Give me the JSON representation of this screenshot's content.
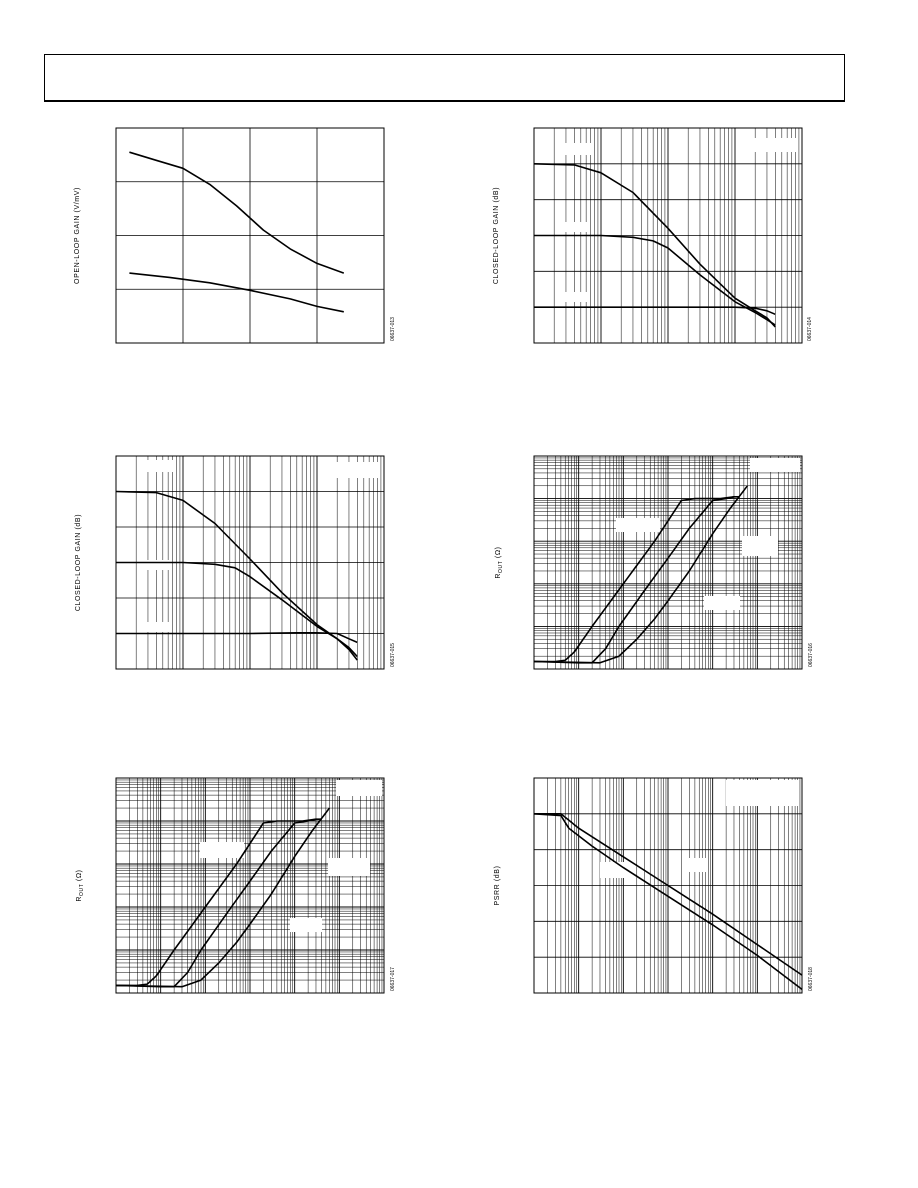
{
  "page": {
    "header": ""
  },
  "chart_data": [
    {
      "id": "ol-gain",
      "type": "line",
      "title": "",
      "xlabel": "",
      "ylabel": "OPEN-LOOP GAIN (V/mV)",
      "side_code": "06637-013",
      "x_scale": "linear",
      "y_scale": "linear",
      "xlim": [
        0,
        4
      ],
      "ylim": [
        0,
        4
      ],
      "grid": true,
      "minor_grid": false,
      "series": [
        {
          "x": [
            0.2,
            0.6,
            1.0,
            1.4,
            1.8,
            2.2,
            2.6,
            3.0,
            3.4
          ],
          "y": [
            3.55,
            3.4,
            3.25,
            2.95,
            2.55,
            2.1,
            1.75,
            1.48,
            1.3
          ]
        },
        {
          "x": [
            0.2,
            0.8,
            1.4,
            2.0,
            2.6,
            3.0,
            3.4
          ],
          "y": [
            1.3,
            1.22,
            1.12,
            0.98,
            0.82,
            0.68,
            0.58
          ]
        }
      ]
    },
    {
      "id": "cl-gain-1",
      "type": "line",
      "title": "",
      "xlabel": "",
      "ylabel": "CLOSED-LOOP GAIN (dB)",
      "side_code": "06637-014",
      "x_scale": "log",
      "y_scale": "linear",
      "xlim": [
        0.001,
        10
      ],
      "ylim": [
        0,
        6
      ],
      "grid": true,
      "minor_grid": true,
      "series": [
        {
          "x": [
            0.001,
            0.004,
            0.01,
            0.03,
            0.1,
            0.3,
            1,
            2,
            3,
            4
          ],
          "y": [
            5.0,
            4.97,
            4.75,
            4.2,
            3.2,
            2.2,
            1.25,
            0.9,
            0.7,
            0.45
          ]
        },
        {
          "x": [
            0.001,
            0.01,
            0.03,
            0.06,
            0.1,
            0.3,
            1,
            2,
            3,
            4
          ],
          "y": [
            3.0,
            3.0,
            2.95,
            2.85,
            2.65,
            1.9,
            1.15,
            0.85,
            0.65,
            0.5
          ]
        },
        {
          "x": [
            0.001,
            0.1,
            1,
            2,
            3,
            4
          ],
          "y": [
            1.0,
            1.0,
            1.0,
            0.97,
            0.9,
            0.8
          ]
        }
      ]
    },
    {
      "id": "cl-gain-2",
      "type": "line",
      "title": "",
      "xlabel": "",
      "ylabel": "CLOSED-LOOP GAIN (dB)",
      "side_code": "06637-015",
      "x_scale": "log",
      "y_scale": "linear",
      "xlim": [
        0.001,
        10
      ],
      "ylim": [
        0,
        6
      ],
      "grid": true,
      "minor_grid": true,
      "series": [
        {
          "x": [
            0.001,
            0.004,
            0.01,
            0.03,
            0.1,
            0.3,
            1,
            2,
            3,
            4
          ],
          "y": [
            5.0,
            4.97,
            4.75,
            4.1,
            3.1,
            2.15,
            1.25,
            0.85,
            0.55,
            0.25
          ]
        },
        {
          "x": [
            0.001,
            0.01,
            0.03,
            0.06,
            0.1,
            0.3,
            1,
            2,
            3,
            4
          ],
          "y": [
            3.0,
            3.0,
            2.95,
            2.85,
            2.6,
            1.95,
            1.2,
            0.85,
            0.6,
            0.35
          ]
        },
        {
          "x": [
            0.001,
            0.1,
            0.5,
            1,
            2,
            3,
            4
          ],
          "y": [
            1.0,
            1.0,
            1.02,
            1.02,
            1.0,
            0.85,
            0.75
          ]
        }
      ]
    },
    {
      "id": "rout-1",
      "type": "line",
      "title": "",
      "xlabel": "",
      "ylabel": "R",
      "ylabel_sub": "OUT",
      "ylabel_unit": " (Ω)",
      "side_code": "06637-016",
      "x_scale": "log",
      "y_scale": "log",
      "xlim": [
        0.001,
        1000
      ],
      "ylim": [
        0.01,
        1000
      ],
      "grid": true,
      "minor_grid": true,
      "series": [
        {
          "x": [
            0.001,
            0.003,
            0.005,
            0.008,
            0.02,
            0.1,
            0.5,
            1,
            2,
            4,
            8,
            15,
            30
          ],
          "y": [
            0.015,
            0.015,
            0.016,
            0.025,
            0.1,
            1,
            10,
            30,
            90,
            100,
            100,
            100,
            110
          ]
        },
        {
          "x": [
            0.001,
            0.01,
            0.02,
            0.04,
            0.08,
            0.3,
            1,
            3,
            10,
            20,
            30,
            40
          ],
          "y": [
            0.015,
            0.014,
            0.014,
            0.03,
            0.1,
            0.7,
            4,
            20,
            90,
            100,
            110,
            110
          ]
        },
        {
          "x": [
            0.001,
            0.03,
            0.08,
            0.2,
            0.5,
            1,
            3,
            10,
            25,
            60
          ],
          "y": [
            0.015,
            0.014,
            0.02,
            0.05,
            0.15,
            0.4,
            2,
            15,
            60,
            200
          ]
        }
      ]
    },
    {
      "id": "rout-2",
      "type": "line",
      "title": "",
      "xlabel": "",
      "ylabel": "R",
      "ylabel_sub": "OUT",
      "ylabel_unit": " (Ω)",
      "side_code": "06637-017",
      "x_scale": "log",
      "y_scale": "log",
      "xlim": [
        0.001,
        1000
      ],
      "ylim": [
        0.01,
        1000
      ],
      "grid": true,
      "minor_grid": true,
      "series": [
        {
          "x": [
            0.001,
            0.003,
            0.005,
            0.008,
            0.02,
            0.1,
            0.5,
            1,
            2,
            4,
            8,
            15,
            30
          ],
          "y": [
            0.015,
            0.015,
            0.016,
            0.025,
            0.1,
            1,
            10,
            30,
            90,
            100,
            100,
            100,
            110
          ]
        },
        {
          "x": [
            0.001,
            0.01,
            0.02,
            0.04,
            0.08,
            0.3,
            1,
            3,
            10,
            20,
            30,
            40
          ],
          "y": [
            0.015,
            0.014,
            0.014,
            0.03,
            0.1,
            0.7,
            4,
            20,
            90,
            100,
            110,
            110
          ]
        },
        {
          "x": [
            0.001,
            0.03,
            0.08,
            0.2,
            0.5,
            1,
            3,
            10,
            25,
            60
          ],
          "y": [
            0.015,
            0.014,
            0.02,
            0.05,
            0.15,
            0.4,
            2,
            15,
            60,
            200
          ]
        }
      ]
    },
    {
      "id": "psrr",
      "type": "line",
      "title": "",
      "xlabel": "",
      "ylabel": "PSRR (dB)",
      "side_code": "06637-018",
      "x_scale": "log",
      "y_scale": "linear",
      "xlim": [
        0.001,
        1000
      ],
      "ylim": [
        0,
        6
      ],
      "grid": true,
      "minor_grid": true,
      "series": [
        {
          "x": [
            0.001,
            0.004,
            0.006,
            0.02,
            0.1,
            1,
            10,
            100,
            1000
          ],
          "y": [
            5.0,
            4.95,
            4.6,
            4.1,
            3.5,
            2.7,
            1.9,
            1.05,
            0.1
          ]
        },
        {
          "x": [
            0.001,
            0.004,
            0.01,
            0.1,
            1,
            10,
            100,
            1000
          ],
          "y": [
            5.0,
            5.0,
            4.6,
            3.8,
            3.0,
            2.2,
            1.35,
            0.5
          ]
        }
      ]
    }
  ]
}
